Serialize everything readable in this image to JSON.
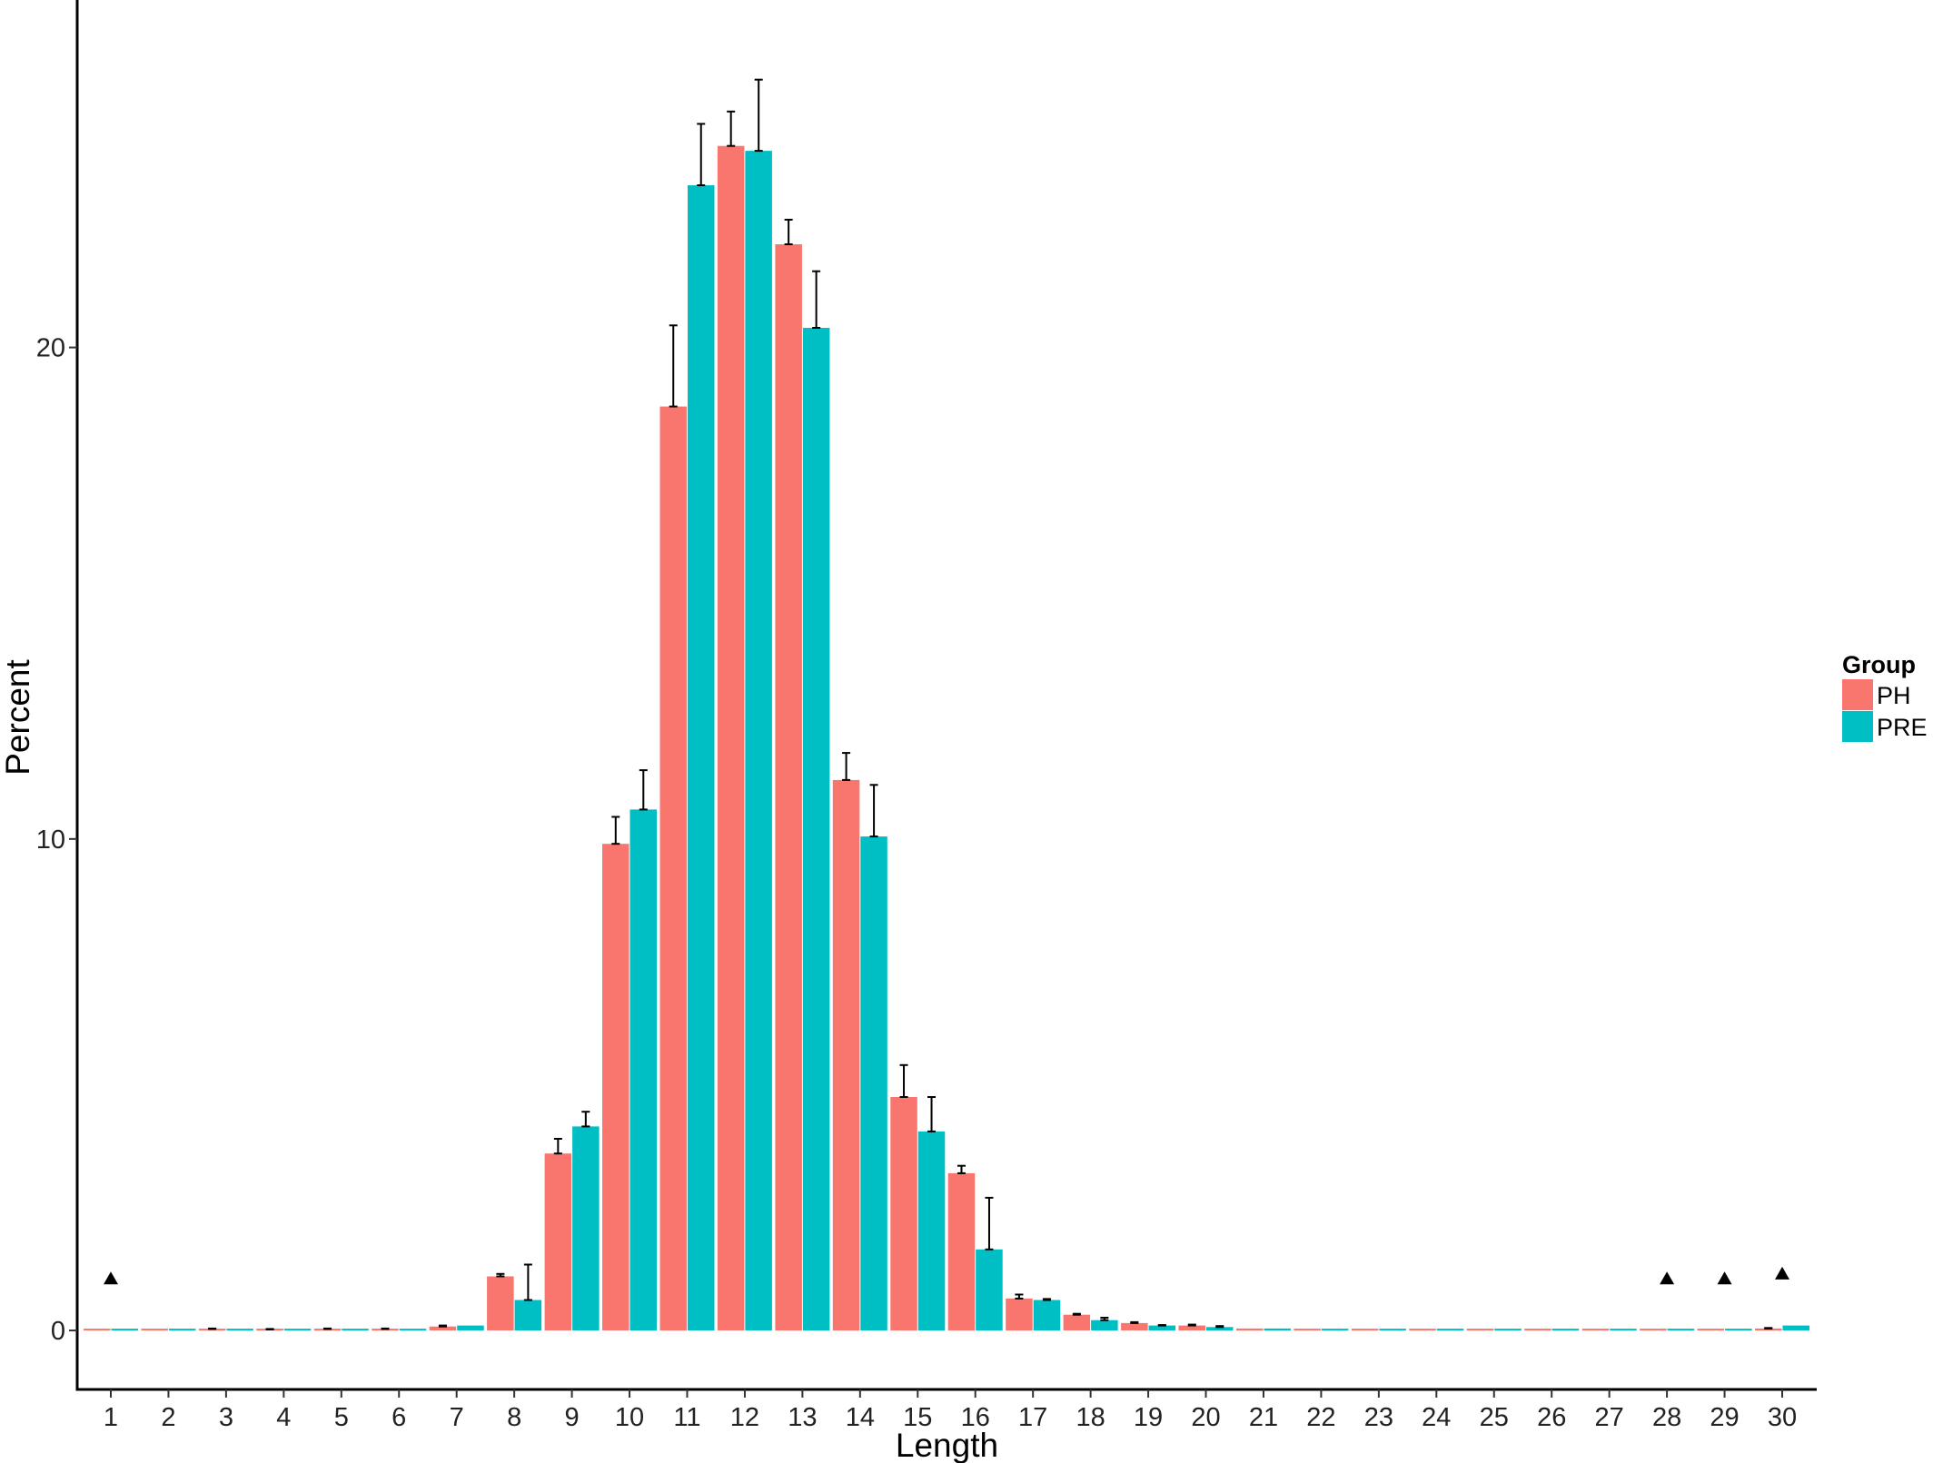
{
  "chart_data": {
    "type": "bar",
    "xlabel": "Length",
    "ylabel": "Percent",
    "ylim": [
      -1.2,
      26.7
    ],
    "yticks": [
      0,
      10,
      20
    ],
    "grid": false,
    "legend": {
      "title": "Group",
      "placement": "right"
    },
    "categories": [
      "1",
      "2",
      "3",
      "4",
      "5",
      "6",
      "7",
      "8",
      "9",
      "10",
      "11",
      "12",
      "13",
      "14",
      "15",
      "16",
      "17",
      "18",
      "19",
      "20",
      "21",
      "22",
      "23",
      "24",
      "25",
      "26",
      "27",
      "28",
      "29",
      "30"
    ],
    "series": [
      {
        "name": "PH",
        "color": "#F8766D",
        "values": [
          0.0,
          0.0,
          0.03,
          0.02,
          0.03,
          0.03,
          0.08,
          1.1,
          3.6,
          9.9,
          18.8,
          24.1,
          22.1,
          11.2,
          4.75,
          3.2,
          0.65,
          0.32,
          0.15,
          0.1,
          0.04,
          0.01,
          0.01,
          0.01,
          0.01,
          0.01,
          0.01,
          0.01,
          0.01,
          0.04
        ],
        "errors": [
          0.0,
          0.0,
          0.01,
          0.01,
          0.01,
          0.01,
          0.02,
          0.05,
          0.3,
          0.55,
          1.65,
          0.7,
          0.5,
          0.55,
          0.65,
          0.15,
          0.08,
          0.02,
          0.02,
          0.02,
          0.0,
          0.0,
          0.0,
          0.0,
          0.0,
          0.0,
          0.0,
          0.0,
          0.0,
          0.01
        ]
      },
      {
        "name": "PRE",
        "color": "#00BFC4",
        "values": [
          0.0,
          0.0,
          0.03,
          0.03,
          0.03,
          0.03,
          0.1,
          0.62,
          4.15,
          10.6,
          23.3,
          24.0,
          20.4,
          10.05,
          4.05,
          1.65,
          0.62,
          0.21,
          0.1,
          0.07,
          0.04,
          0.01,
          0.01,
          0.01,
          0.01,
          0.01,
          0.01,
          0.01,
          0.01,
          0.1
        ],
        "errors": [
          0.0,
          0.0,
          0.0,
          0.0,
          0.0,
          0.0,
          0.0,
          0.72,
          0.3,
          0.8,
          1.25,
          1.45,
          1.15,
          1.05,
          0.7,
          1.05,
          0.02,
          0.05,
          0.01,
          0.02,
          0.0,
          0.0,
          0.0,
          0.0,
          0.0,
          0.0,
          0.0,
          0.0,
          0.0,
          0.0
        ]
      }
    ],
    "markers": [
      {
        "category": "1",
        "symbol": "triangle",
        "value": 1.05
      },
      {
        "category": "28",
        "symbol": "triangle",
        "value": 1.05
      },
      {
        "category": "29",
        "symbol": "triangle",
        "value": 1.05
      },
      {
        "category": "30",
        "symbol": "triangle",
        "value": 1.15
      }
    ]
  }
}
